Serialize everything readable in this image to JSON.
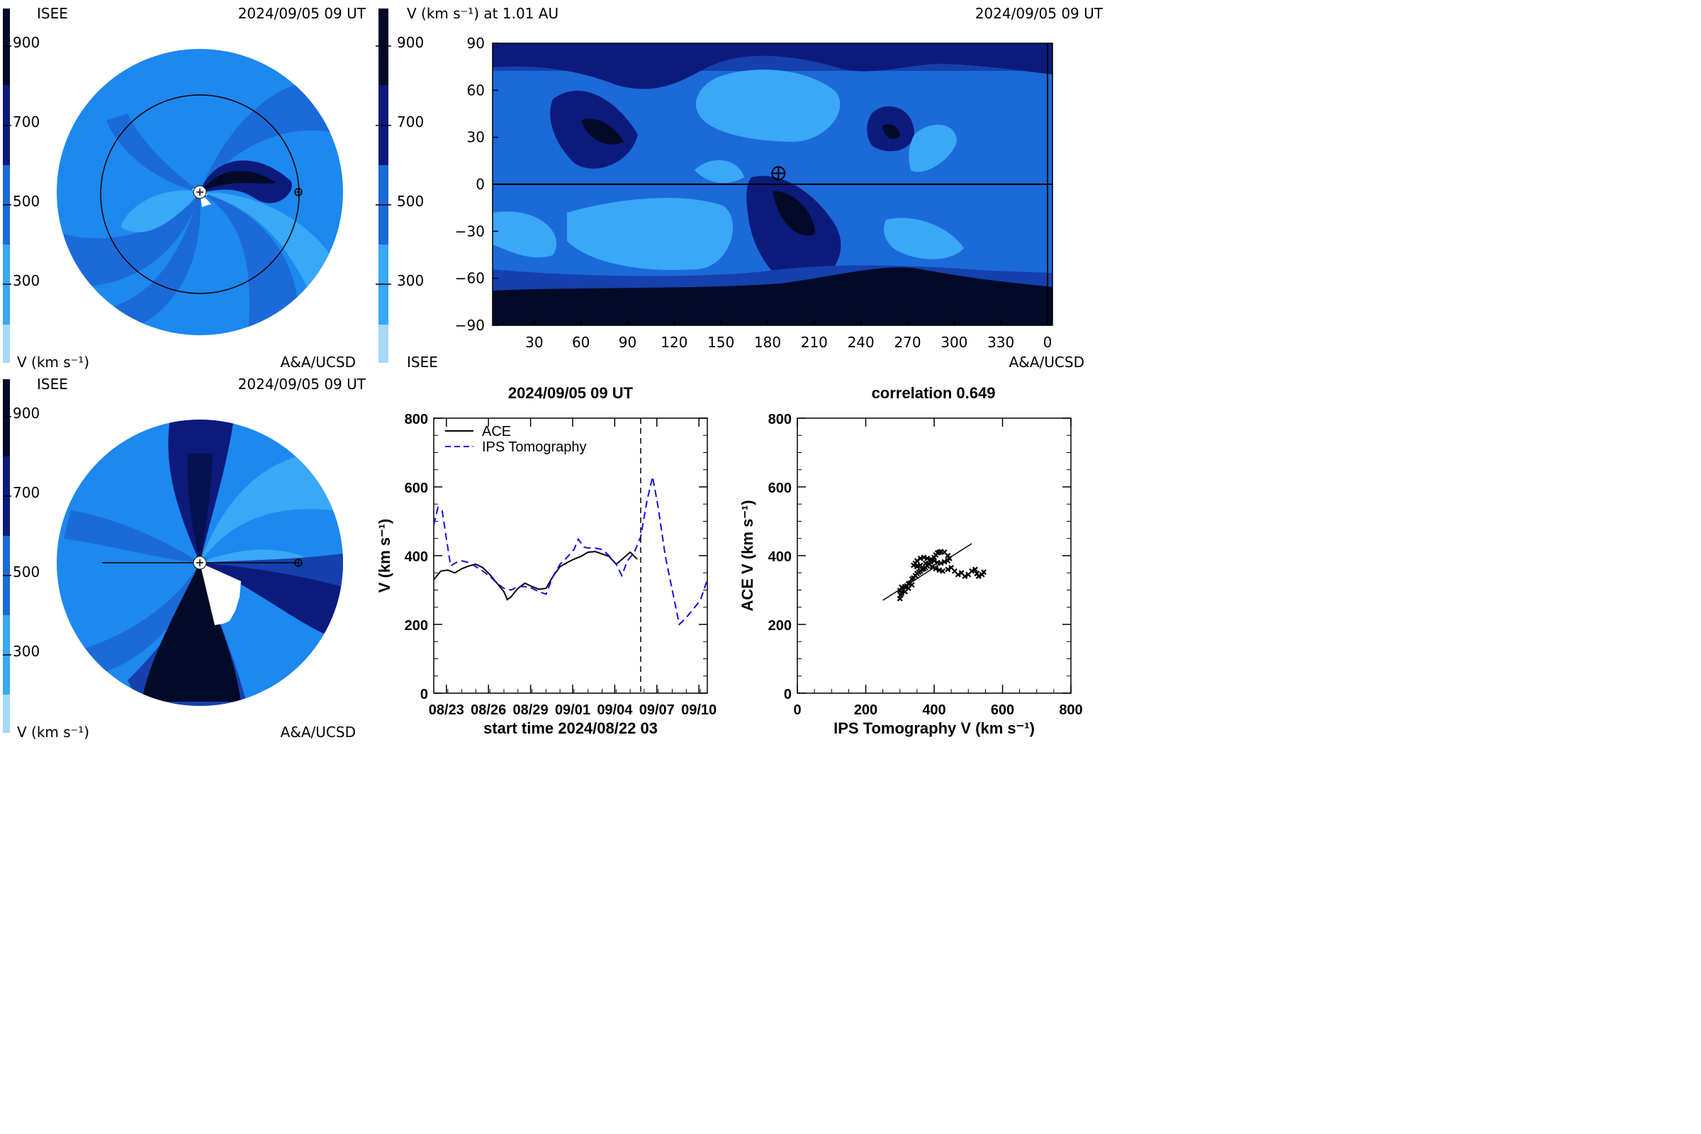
{
  "panels": {
    "top_left": {
      "org": "ISEE",
      "date": "2024/09/05 09 UT",
      "credit": "A&A/UCSD",
      "colorbar": {
        "ticks": [
          "900",
          "700",
          "500",
          "300"
        ],
        "unit": "V (km s⁻¹)"
      }
    },
    "top_right": {
      "title": "V (km s⁻¹) at 1.01 AU",
      "date": "2024/09/05 09 UT",
      "org": "ISEE",
      "credit": "A&A/UCSD",
      "colorbar": {
        "ticks": [
          "900",
          "700",
          "500",
          "300"
        ]
      },
      "map": {
        "x_ticks": [
          "30",
          "60",
          "90",
          "120",
          "150",
          "180",
          "210",
          "240",
          "270",
          "300",
          "330",
          "0"
        ],
        "y_ticks": [
          "90",
          "60",
          "30",
          "0",
          "−30",
          "−60",
          "−90"
        ],
        "earth_marker": {
          "lon": 187,
          "lat": 7
        }
      }
    },
    "bottom_left": {
      "org": "ISEE",
      "date": "2024/09/05 09 UT",
      "credit": "A&A/UCSD",
      "colorbar": {
        "ticks": [
          "900",
          "700",
          "500",
          "300"
        ],
        "unit": "V (km s⁻¹)"
      }
    }
  },
  "colors": {
    "lightest": "#a6d8f8",
    "light": "#3aa7f7",
    "mid_light": "#1d88ef",
    "mid": "#1b6ad8",
    "mid_dark": "#1540ad",
    "dark": "#0c1a7c",
    "darker": "#051150",
    "darkest": "#020a27"
  },
  "chart_data": [
    {
      "type": "line",
      "title": "2024/09/05 09 UT",
      "xlabel": "start time 2024/08/22 03",
      "ylabel": "V (km s⁻¹)",
      "x_tick_labels": [
        "08/23",
        "08/26",
        "08/29",
        "09/01",
        "09/04",
        "09/07",
        "09/10"
      ],
      "y_tick_labels": [
        "0",
        "200",
        "400",
        "600",
        "800"
      ],
      "ylim": [
        0,
        800
      ],
      "xlim_days": [
        0,
        19.5
      ],
      "vline_day": 14.75,
      "legend_position": "top-left",
      "series": [
        {
          "name": "ACE",
          "style": "solid",
          "color": "#000000",
          "points": [
            [
              0.0,
              330
            ],
            [
              0.5,
              355
            ],
            [
              1.0,
              358
            ],
            [
              1.5,
              350
            ],
            [
              2.0,
              362
            ],
            [
              2.5,
              370
            ],
            [
              3.0,
              375
            ],
            [
              3.5,
              365
            ],
            [
              4.0,
              345
            ],
            [
              4.5,
              320
            ],
            [
              5.0,
              295
            ],
            [
              5.25,
              272
            ],
            [
              5.5,
              280
            ],
            [
              6.0,
              305
            ],
            [
              6.5,
              320
            ],
            [
              7.0,
              310
            ],
            [
              7.5,
              302
            ],
            [
              8.0,
              305
            ],
            [
              8.5,
              340
            ],
            [
              9.0,
              368
            ],
            [
              9.5,
              380
            ],
            [
              10.0,
              390
            ],
            [
              10.5,
              398
            ],
            [
              11.0,
              410
            ],
            [
              11.5,
              412
            ],
            [
              12.0,
              405
            ],
            [
              12.5,
              398
            ],
            [
              13.0,
              375
            ],
            [
              13.5,
              392
            ],
            [
              14.0,
              410
            ],
            [
              14.5,
              390
            ]
          ]
        },
        {
          "name": "IPS Tomography",
          "style": "dashed",
          "color": "#1010e0",
          "points": [
            [
              0.0,
              490
            ],
            [
              0.3,
              540
            ],
            [
              0.6,
              530
            ],
            [
              1.2,
              370
            ],
            [
              1.6,
              380
            ],
            [
              2.0,
              385
            ],
            [
              2.5,
              380
            ],
            [
              3.0,
              368
            ],
            [
              3.5,
              355
            ],
            [
              4.0,
              340
            ],
            [
              4.5,
              320
            ],
            [
              5.0,
              305
            ],
            [
              5.5,
              300
            ],
            [
              6.0,
              310
            ],
            [
              6.5,
              310
            ],
            [
              7.0,
              305
            ],
            [
              7.5,
              295
            ],
            [
              8.0,
              288
            ],
            [
              8.5,
              340
            ],
            [
              9.0,
              375
            ],
            [
              9.5,
              395
            ],
            [
              10.0,
              418
            ],
            [
              10.3,
              448
            ],
            [
              10.7,
              425
            ],
            [
              11.0,
              422
            ],
            [
              11.5,
              422
            ],
            [
              12.0,
              418
            ],
            [
              12.5,
              400
            ],
            [
              13.0,
              375
            ],
            [
              13.4,
              342
            ],
            [
              13.8,
              385
            ],
            [
              14.3,
              410
            ],
            [
              14.75,
              455
            ],
            [
              15.2,
              560
            ],
            [
              15.6,
              630
            ],
            [
              16.0,
              540
            ],
            [
              16.5,
              400
            ],
            [
              17.0,
              300
            ],
            [
              17.5,
              200
            ],
            [
              18.0,
              220
            ],
            [
              18.5,
              245
            ],
            [
              19.0,
              270
            ],
            [
              19.5,
              330
            ]
          ]
        }
      ]
    },
    {
      "type": "scatter",
      "title": "correlation 0.649",
      "xlabel": "IPS Tomography V (km s⁻¹)",
      "ylabel": "ACE V (km s⁻¹)",
      "x_tick_labels": [
        "0",
        "200",
        "400",
        "600",
        "800"
      ],
      "y_tick_labels": [
        "0",
        "200",
        "400",
        "600",
        "800"
      ],
      "xlim": [
        0,
        800
      ],
      "ylim": [
        0,
        800
      ],
      "fit_line": [
        [
          250,
          270
        ],
        [
          510,
          435
        ]
      ],
      "points": [
        [
          300,
          275
        ],
        [
          302,
          285
        ],
        [
          305,
          290
        ],
        [
          310,
          300
        ],
        [
          305,
          308
        ],
        [
          315,
          310
        ],
        [
          320,
          312
        ],
        [
          325,
          318
        ],
        [
          330,
          320
        ],
        [
          335,
          332
        ],
        [
          340,
          335
        ],
        [
          345,
          342
        ],
        [
          350,
          348
        ],
        [
          355,
          352
        ],
        [
          360,
          355
        ],
        [
          365,
          360
        ],
        [
          370,
          362
        ],
        [
          375,
          365
        ],
        [
          380,
          370
        ],
        [
          385,
          375
        ],
        [
          390,
          382
        ],
        [
          395,
          388
        ],
        [
          400,
          395
        ],
        [
          405,
          402
        ],
        [
          410,
          408
        ],
        [
          415,
          410
        ],
        [
          420,
          412
        ],
        [
          430,
          410
        ],
        [
          440,
          400
        ],
        [
          445,
          392
        ],
        [
          440,
          385
        ],
        [
          430,
          382
        ],
        [
          420,
          378
        ],
        [
          410,
          380
        ],
        [
          400,
          385
        ],
        [
          390,
          388
        ],
        [
          380,
          392
        ],
        [
          370,
          395
        ],
        [
          360,
          392
        ],
        [
          350,
          385
        ],
        [
          345,
          378
        ],
        [
          340,
          372
        ],
        [
          350,
          368
        ],
        [
          360,
          372
        ],
        [
          375,
          378
        ],
        [
          385,
          375
        ],
        [
          395,
          368
        ],
        [
          405,
          362
        ],
        [
          415,
          358
        ],
        [
          425,
          355
        ],
        [
          440,
          360
        ],
        [
          450,
          365
        ],
        [
          460,
          355
        ],
        [
          470,
          345
        ],
        [
          480,
          350
        ],
        [
          490,
          340
        ],
        [
          500,
          345
        ],
        [
          510,
          355
        ],
        [
          520,
          360
        ],
        [
          525,
          348
        ],
        [
          530,
          340
        ],
        [
          540,
          345
        ],
        [
          545,
          352
        ],
        [
          325,
          305
        ],
        [
          315,
          295
        ],
        [
          335,
          315
        ],
        [
          300,
          298
        ]
      ]
    }
  ]
}
